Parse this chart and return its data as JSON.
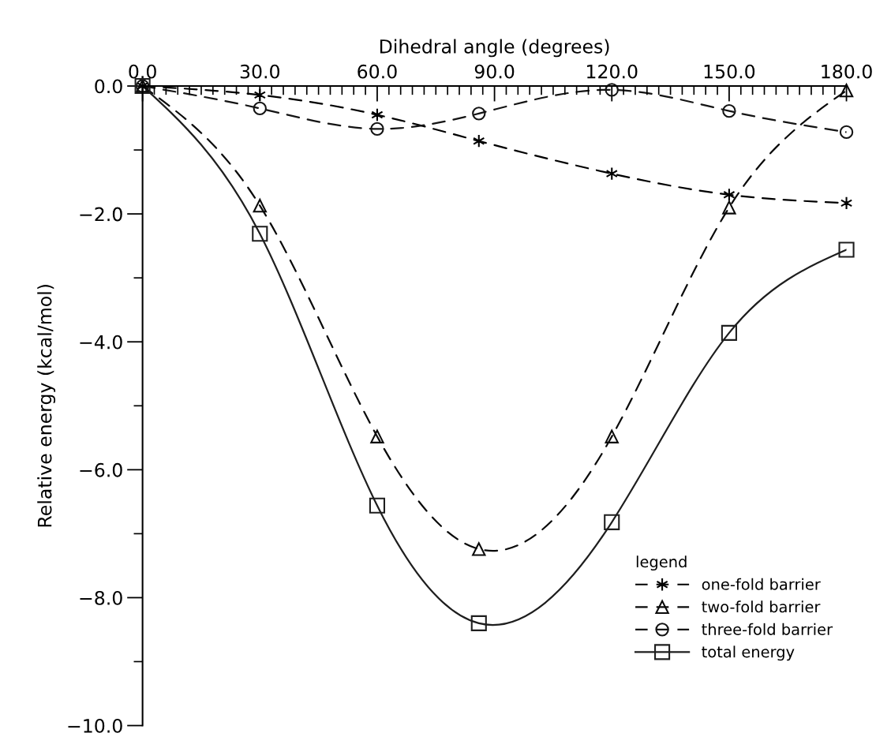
{
  "chart_data": {
    "type": "line",
    "xlabel": "Dihedral angle (degrees)",
    "ylabel": "Relative energy (kcal/mol)",
    "legend_title": "legend",
    "x": [
      0,
      30,
      60,
      86,
      120,
      150,
      180
    ],
    "series": [
      {
        "name": "one-fold barrier",
        "color": "#000000",
        "marker": "cross",
        "line_style": "dashed",
        "values": [
          0,
          -0.14,
          -0.45,
          -0.86,
          -1.37,
          -1.7,
          -1.83
        ]
      },
      {
        "name": "two-fold barrier",
        "color": "#0a0a0a",
        "marker": "triangle",
        "line_style": "dashed",
        "values": [
          0,
          -1.87,
          -5.48,
          -7.24,
          -5.48,
          -1.9,
          -0.07
        ]
      },
      {
        "name": "three-fold barrier",
        "color": "#141414",
        "marker": "circle",
        "line_style": "dashed",
        "values": [
          0,
          -0.35,
          -0.67,
          -0.43,
          -0.06,
          -0.39,
          -0.72
        ]
      },
      {
        "name": "total energy",
        "color": "#1e1e1e",
        "marker": "square",
        "line_style": "solid",
        "values": [
          0,
          -2.31,
          -6.56,
          -8.4,
          -6.82,
          -3.86,
          -2.56
        ]
      }
    ],
    "xlim": [
      0,
      180
    ],
    "xticks": [
      {
        "value": 0,
        "label": "0.0"
      },
      {
        "value": 30,
        "label": "30.0"
      },
      {
        "value": 60,
        "label": "60.0"
      },
      {
        "value": 90,
        "label": "90.0"
      },
      {
        "value": 120,
        "label": "120.0"
      },
      {
        "value": 150,
        "label": "150.0"
      },
      {
        "value": 180,
        "label": "180.0"
      },
      {
        "value": 3,
        "label": null
      },
      {
        "value": 6,
        "label": null
      },
      {
        "value": 9,
        "label": null
      },
      {
        "value": 12,
        "label": null
      },
      {
        "value": 15,
        "label": null
      },
      {
        "value": 18,
        "label": null
      },
      {
        "value": 21,
        "label": null
      },
      {
        "value": 24,
        "label": null
      },
      {
        "value": 27,
        "label": null
      },
      {
        "value": 33,
        "label": null
      },
      {
        "value": 36,
        "label": null
      },
      {
        "value": 39,
        "label": null
      },
      {
        "value": 42,
        "label": null
      },
      {
        "value": 45,
        "label": null
      },
      {
        "value": 48,
        "label": null
      },
      {
        "value": 51,
        "label": null
      },
      {
        "value": 54,
        "label": null
      },
      {
        "value": 57,
        "label": null
      },
      {
        "value": 63,
        "label": null
      },
      {
        "value": 66,
        "label": null
      },
      {
        "value": 69,
        "label": null
      },
      {
        "value": 72,
        "label": null
      },
      {
        "value": 75,
        "label": null
      },
      {
        "value": 78,
        "label": null
      },
      {
        "value": 81,
        "label": null
      },
      {
        "value": 84,
        "label": null
      },
      {
        "value": 87,
        "label": null
      },
      {
        "value": 93,
        "label": null
      },
      {
        "value": 96,
        "label": null
      },
      {
        "value": 99,
        "label": null
      },
      {
        "value": 102,
        "label": null
      },
      {
        "value": 105,
        "label": null
      },
      {
        "value": 108,
        "label": null
      },
      {
        "value": 111,
        "label": null
      },
      {
        "value": 114,
        "label": null
      },
      {
        "value": 117,
        "label": null
      },
      {
        "value": 123,
        "label": null
      },
      {
        "value": 126,
        "label": null
      },
      {
        "value": 129,
        "label": null
      },
      {
        "value": 132,
        "label": null
      },
      {
        "value": 135,
        "label": null
      },
      {
        "value": 138,
        "label": null
      },
      {
        "value": 141,
        "label": null
      },
      {
        "value": 144,
        "label": null
      },
      {
        "value": 147,
        "label": null
      },
      {
        "value": 153,
        "label": null
      },
      {
        "value": 156,
        "label": null
      },
      {
        "value": 159,
        "label": null
      },
      {
        "value": 162,
        "label": null
      },
      {
        "value": 165,
        "label": null
      },
      {
        "value": 168,
        "label": null
      },
      {
        "value": 171,
        "label": null
      },
      {
        "value": 174,
        "label": null
      },
      {
        "value": 177,
        "label": null
      }
    ],
    "ylim": [
      -10,
      0
    ],
    "yticks": [
      {
        "value": 0,
        "label": "0.0"
      },
      {
        "value": -2,
        "label": "−2.0"
      },
      {
        "value": -4,
        "label": "−4.0"
      },
      {
        "value": -6,
        "label": "−6.0"
      },
      {
        "value": -8,
        "label": "−8.0"
      },
      {
        "value": -10,
        "label": "−10.0"
      },
      {
        "value": -1,
        "label": null
      },
      {
        "value": -3,
        "label": null
      },
      {
        "value": -5,
        "label": null
      },
      {
        "value": -7,
        "label": null
      },
      {
        "value": -9,
        "label": null
      }
    ],
    "grid": false,
    "legend": "lower right"
  }
}
